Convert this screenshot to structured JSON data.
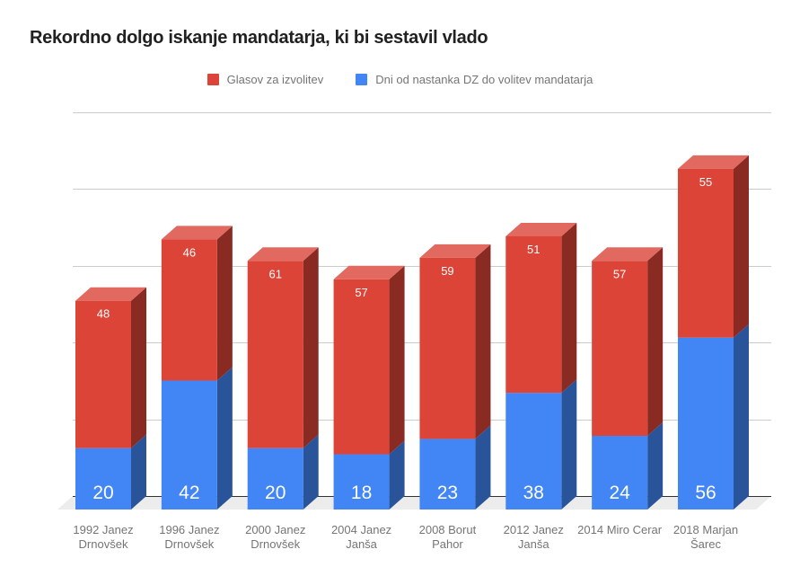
{
  "page": {
    "background": "#ffffff"
  },
  "chart_data": {
    "type": "bar",
    "variant": "3d-stacked-column",
    "title": "Rekordno dolgo iskanje mandatarja, ki bi sestavil vlado",
    "legend_position": "top-center",
    "grid": true,
    "yaxis_labels_visible": false,
    "ylim": [
      0,
      125
    ],
    "ytick_step": 25,
    "categories": [
      "1992 Janez\nDrnovšek",
      "1996 Janez\nDrnovšek",
      "2000 Janez\nDrnovšek",
      "2004 Janez\nJanša",
      "2008 Borut\nPahor",
      "2012 Janez\nJanša",
      "2014 Miro Cerar",
      "2018 Marjan\nŠarec"
    ],
    "series": [
      {
        "name": "Glasov za izvolitev",
        "color": "#db4437",
        "stack_position": "top",
        "values": [
          48,
          46,
          61,
          57,
          59,
          51,
          57,
          55
        ],
        "value_label_style": "white, 13px, near top of segment"
      },
      {
        "name": "Dni od nastanka DZ do volitev mandatarja",
        "color": "#4285f4",
        "stack_position": "bottom",
        "values": [
          20,
          42,
          20,
          18,
          23,
          38,
          24,
          56
        ],
        "value_label_style": "white, 21px, near bottom of segment"
      }
    ],
    "colors": {
      "title_text": "#212121",
      "legend_text": "#757575",
      "category_text": "#757575",
      "value_label_text": "#ffffff",
      "gridline": "#cccccc",
      "baseline": "#333333",
      "floor": "#ececec",
      "background": "#ffffff"
    }
  }
}
